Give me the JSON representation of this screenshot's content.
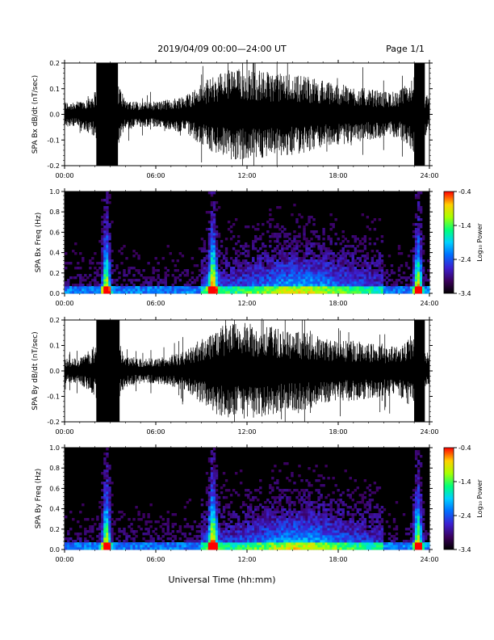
{
  "header": {
    "title": "2019/04/09   00:00—24:00 UT",
    "page": "Page 1/1"
  },
  "xlabel": "Universal Time (hh:mm)",
  "colorbar": {
    "label": "Log₁₀ Power",
    "ticks": [
      "-0.4",
      "-1.4",
      "-2.4",
      "-3.4"
    ],
    "range": [
      -3.4,
      -0.4
    ]
  },
  "chart_data": [
    {
      "type": "line",
      "ylabel": "SPA Bx dB/dt (nT/sec)",
      "ylim": [
        -0.2,
        0.2
      ],
      "xlim": [
        0,
        24
      ],
      "x_ticks": [
        "00:00",
        "06:00",
        "12:00",
        "18:00",
        "24:00"
      ],
      "y_ticks": [
        "-0.2",
        "-0.1",
        "0.0",
        "0.1",
        "0.2"
      ],
      "saturated_intervals": [
        [
          2.1,
          3.5
        ],
        [
          23.0,
          23.7
        ]
      ],
      "envelope_hours": [
        0,
        1,
        2,
        3,
        4,
        5,
        6,
        7,
        8,
        9,
        10,
        11,
        12,
        13,
        14,
        15,
        16,
        17,
        18,
        19,
        20,
        21,
        22,
        23,
        24
      ],
      "envelope_amplitude": [
        0.05,
        0.05,
        0.09,
        0.2,
        0.06,
        0.05,
        0.05,
        0.06,
        0.08,
        0.12,
        0.16,
        0.18,
        0.18,
        0.17,
        0.16,
        0.16,
        0.15,
        0.13,
        0.12,
        0.11,
        0.1,
        0.09,
        0.09,
        0.15,
        0.06
      ]
    },
    {
      "type": "heatmap",
      "ylabel": "SPA Bx Freq (Hz)",
      "ylim": [
        0,
        1.0
      ],
      "xlim": [
        0,
        24
      ],
      "x_ticks": [
        "00:00",
        "06:00",
        "12:00",
        "18:00",
        "24:00"
      ],
      "y_ticks": [
        "0.0",
        "0.2",
        "0.4",
        "0.6",
        "0.8",
        "1.0"
      ],
      "bursts": [
        [
          2.5,
          3.0
        ],
        [
          9.5,
          10.0
        ],
        [
          23.0,
          23.5
        ]
      ]
    },
    {
      "type": "line",
      "ylabel": "SPA By dB/dt (nT/sec)",
      "ylim": [
        -0.2,
        0.2
      ],
      "xlim": [
        0,
        24
      ],
      "x_ticks": [
        "00:00",
        "06:00",
        "12:00",
        "18:00",
        "24:00"
      ],
      "y_ticks": [
        "-0.2",
        "-0.1",
        "0.0",
        "0.1",
        "0.2"
      ],
      "saturated_intervals": [
        [
          2.1,
          3.6
        ],
        [
          23.0,
          23.7
        ]
      ],
      "envelope_hours": [
        0,
        1,
        2,
        3,
        4,
        5,
        6,
        7,
        8,
        9,
        10,
        11,
        12,
        13,
        14,
        15,
        16,
        17,
        18,
        19,
        20,
        21,
        22,
        23,
        24
      ],
      "envelope_amplitude": [
        0.05,
        0.05,
        0.1,
        0.2,
        0.06,
        0.05,
        0.05,
        0.06,
        0.08,
        0.13,
        0.17,
        0.19,
        0.19,
        0.18,
        0.17,
        0.16,
        0.15,
        0.13,
        0.12,
        0.12,
        0.11,
        0.1,
        0.1,
        0.16,
        0.06
      ]
    },
    {
      "type": "heatmap",
      "ylabel": "SPA By Freq (Hz)",
      "ylim": [
        0,
        1.0
      ],
      "xlim": [
        0,
        24
      ],
      "x_ticks": [
        "00:00",
        "06:00",
        "12:00",
        "18:00",
        "24:00"
      ],
      "y_ticks": [
        "0.0",
        "0.2",
        "0.4",
        "0.6",
        "0.8",
        "1.0"
      ],
      "bursts": [
        [
          2.5,
          3.0
        ],
        [
          9.5,
          10.0
        ],
        [
          23.0,
          23.5
        ]
      ]
    }
  ]
}
